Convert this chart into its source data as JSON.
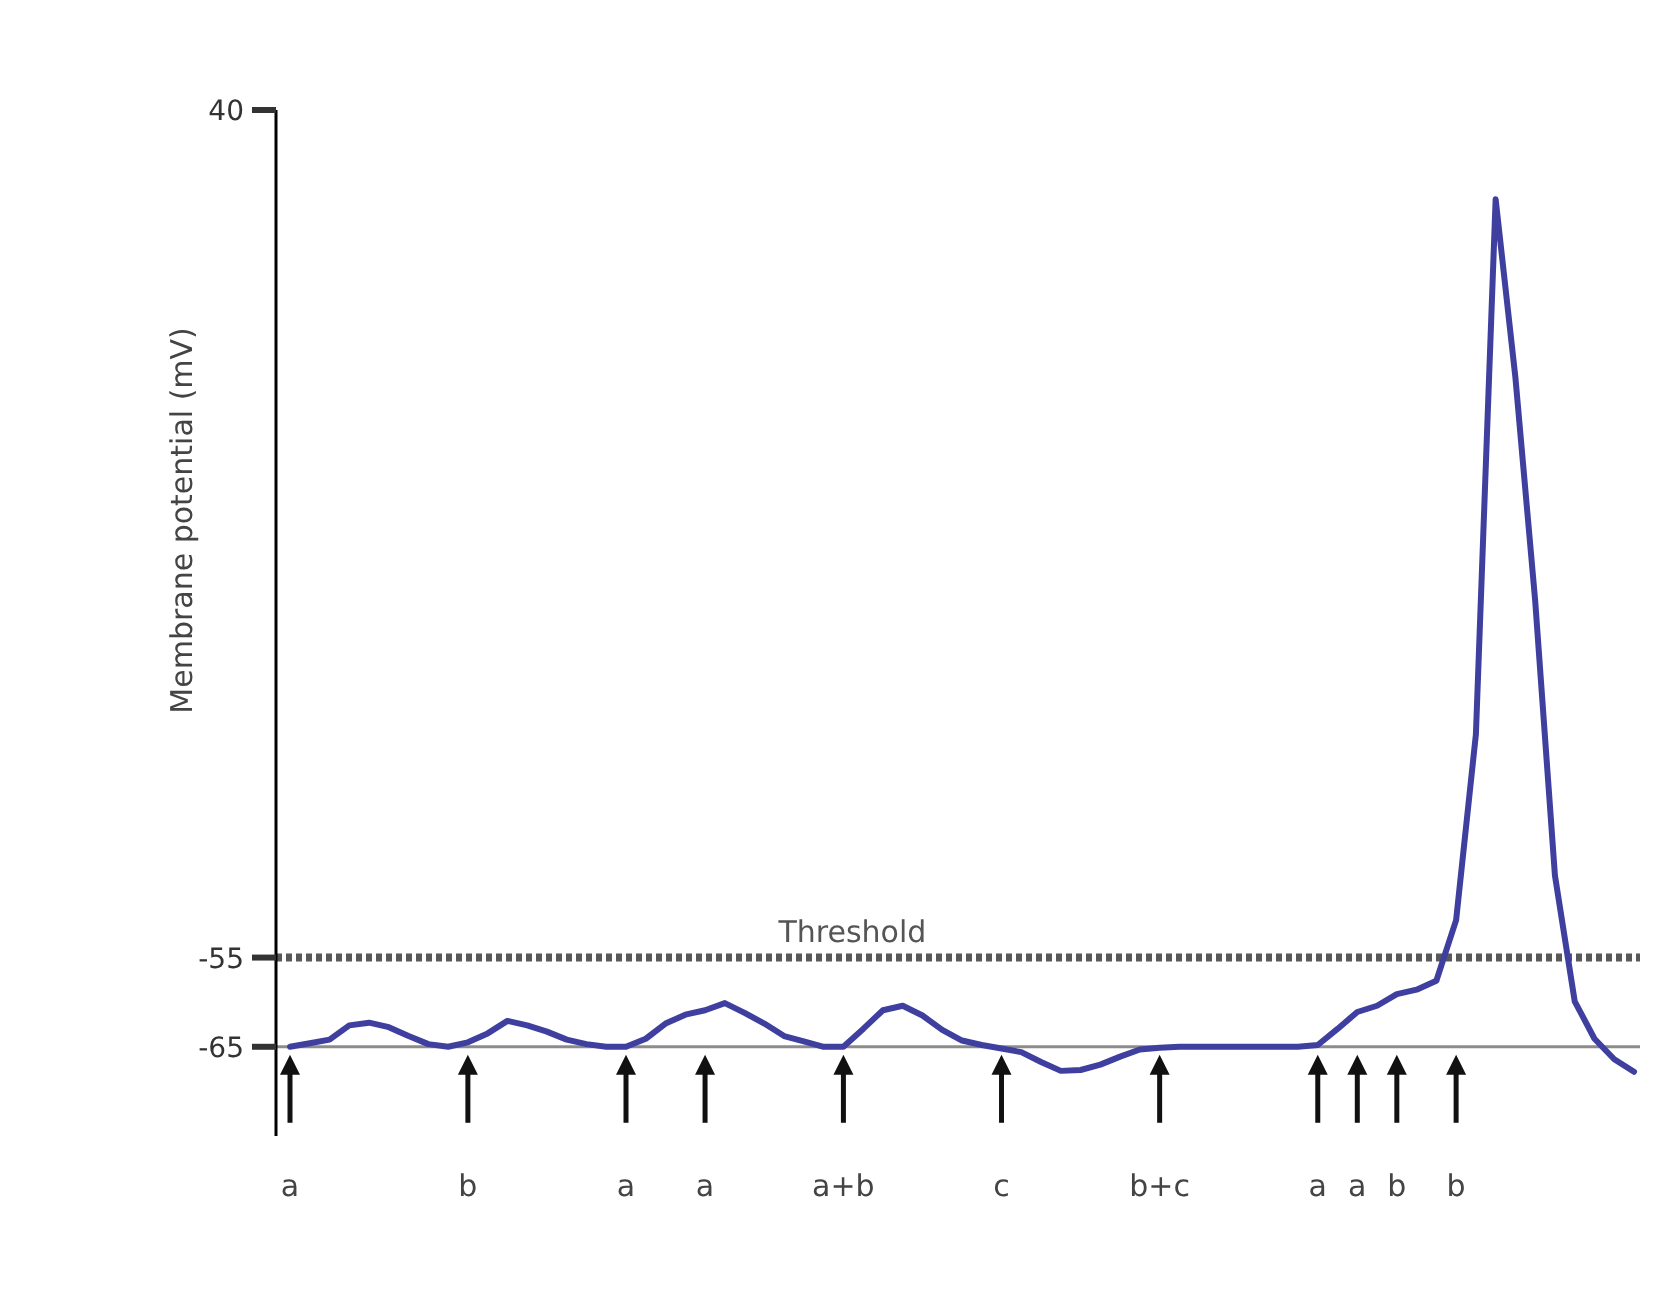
{
  "chart_data": {
    "type": "line",
    "ylabel": "Membrane potential (mV)",
    "categories": [
      "a",
      null,
      null,
      null,
      null,
      null,
      null,
      null,
      null,
      "b",
      null,
      null,
      null,
      null,
      null,
      null,
      null,
      "a",
      null,
      null,
      null,
      "a",
      null,
      null,
      null,
      null,
      null,
      null,
      "a+b",
      null,
      null,
      null,
      null,
      null,
      null,
      null,
      "c",
      null,
      null,
      null,
      null,
      null,
      null,
      null,
      "b+c",
      null,
      null,
      null,
      null,
      null,
      null,
      null,
      "a",
      null,
      "a",
      null,
      "b",
      null,
      null,
      "b",
      null,
      null,
      null,
      null,
      null,
      null,
      null,
      null,
      null
    ],
    "series": [
      {
        "color": "#3f3fa0",
        "values": [
          -65,
          -64.6,
          -64.2,
          -62.6,
          -62.3,
          -62.8,
          -63.8,
          -64.7,
          -65,
          -64.5,
          -63.5,
          -62.1,
          -62.6,
          -63.3,
          -64.2,
          -64.7,
          -65,
          -65,
          -64.1,
          -62.4,
          -61.4,
          -60.9,
          -60.1,
          -61.2,
          -62.4,
          -63.8,
          -64.4,
          -65,
          -65,
          -63,
          -60.9,
          -60.4,
          -61.5,
          -63.1,
          -64.3,
          -64.8,
          -65.2,
          -65.6,
          -66.7,
          -67.7,
          -67.6,
          -67,
          -66.1,
          -65.3,
          -65.1,
          -65,
          -65,
          -65,
          -65,
          -65,
          -65,
          -65,
          -64.8,
          -63,
          -61.1,
          -60.4,
          -59.1,
          -58.6,
          -57.6,
          -50.8,
          -30,
          30,
          10,
          -15,
          -45.8,
          -59.9,
          -64.1,
          -66.4,
          -67.8
        ]
      }
    ],
    "ylim": [
      -75,
      40
    ],
    "yticks": [
      -65,
      -55,
      40
    ],
    "marker": "none",
    "line_style": "solid",
    "grid": false,
    "ref_lines": [
      {
        "axis": "y",
        "value": -65,
        "color": "#8c8c8c",
        "line_style": "solid"
      },
      {
        "axis": "y",
        "value": -55,
        "label": "Threshold",
        "color": "#595959",
        "line_style": "dotted"
      }
    ]
  }
}
